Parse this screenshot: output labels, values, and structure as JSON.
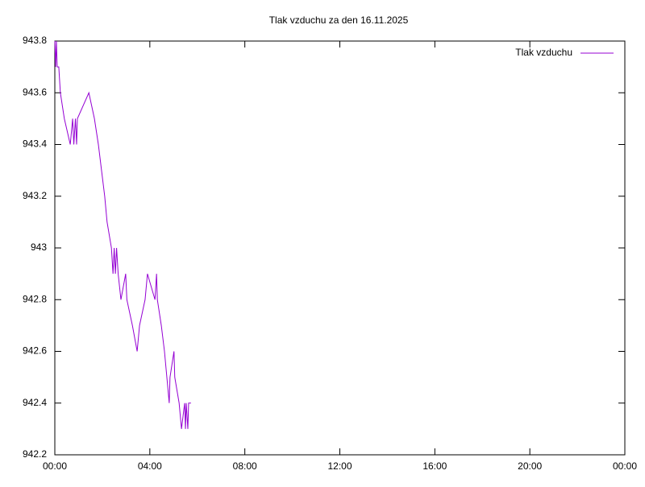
{
  "chart_data": {
    "type": "line",
    "title": "Tlak vzduchu za den 16.11.2025",
    "x": [
      "00:00",
      "00:02",
      "00:04",
      "00:06",
      "00:10",
      "00:14",
      "00:24",
      "00:39",
      "00:45",
      "00:48",
      "00:52",
      "00:55",
      "00:57",
      "01:26",
      "01:40",
      "01:50",
      "01:58",
      "02:06",
      "02:12",
      "02:23",
      "02:27",
      "02:30",
      "02:33",
      "02:36",
      "02:40",
      "02:47",
      "02:59",
      "03:02",
      "03:16",
      "03:28",
      "03:34",
      "03:48",
      "03:54",
      "04:13",
      "04:17",
      "04:19",
      "04:29",
      "04:37",
      "04:43",
      "04:49",
      "04:51",
      "05:01",
      "05:03",
      "05:14",
      "05:20",
      "05:28",
      "05:30",
      "05:32",
      "05:36",
      "05:38",
      "05:44"
    ],
    "series": [
      {
        "name": "Tlak vzduchu",
        "color": "#9400d3",
        "values": [
          943.8,
          943.7,
          943.8,
          943.7,
          943.7,
          943.6,
          943.5,
          943.4,
          943.5,
          943.4,
          943.5,
          943.4,
          943.5,
          943.6,
          943.5,
          943.4,
          943.3,
          943.2,
          943.1,
          943.0,
          942.9,
          943.0,
          942.9,
          943.0,
          942.9,
          942.8,
          942.9,
          942.8,
          942.7,
          942.6,
          942.7,
          942.8,
          942.9,
          942.8,
          942.9,
          942.8,
          942.7,
          942.6,
          942.5,
          942.4,
          942.5,
          942.6,
          942.5,
          942.4,
          942.3,
          942.4,
          942.3,
          942.4,
          942.3,
          942.4,
          942.4
        ]
      }
    ],
    "xlim": [
      "00:00",
      "24:00"
    ],
    "xticks": [
      "00:00",
      "04:00",
      "08:00",
      "12:00",
      "16:00",
      "20:00",
      "00:00"
    ],
    "ylim": [
      942.2,
      943.8
    ],
    "yticks": [
      942.2,
      942.4,
      942.6,
      942.8,
      943,
      943.2,
      943.4,
      943.6,
      943.8
    ],
    "legend": "upper right"
  }
}
